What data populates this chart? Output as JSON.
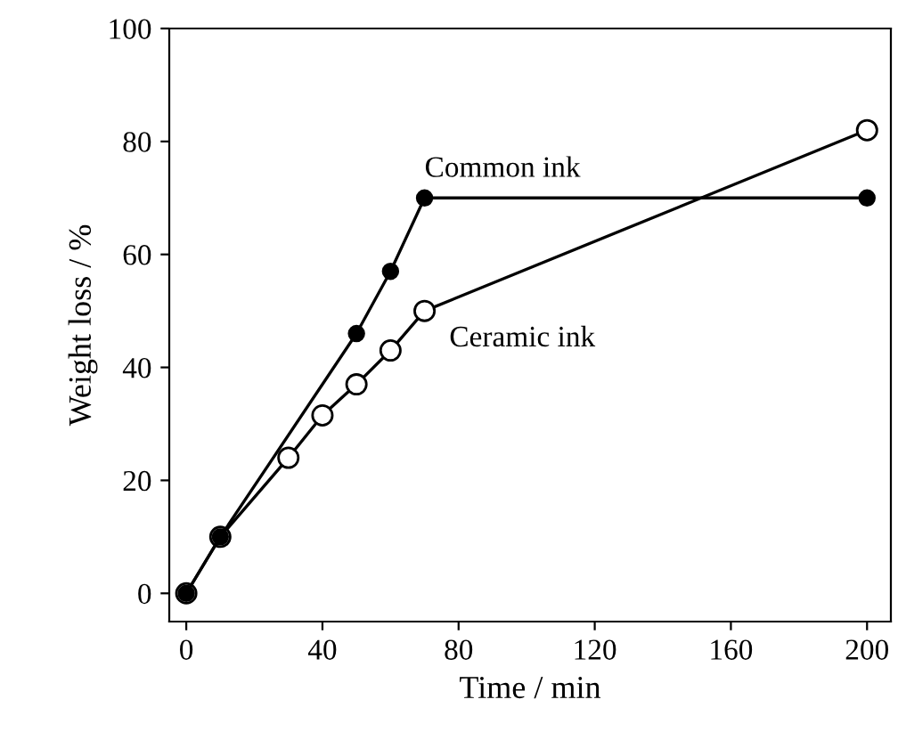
{
  "chart_data": {
    "type": "line",
    "xlabel": "Time / min",
    "ylabel": "Weight loss / %",
    "xlim": [
      -5,
      207
    ],
    "ylim": [
      -5,
      100
    ],
    "xticks": [
      0,
      40,
      80,
      120,
      160,
      200
    ],
    "yticks": [
      0,
      20,
      40,
      60,
      80,
      100
    ],
    "grid": false,
    "legend": false,
    "marker": "circle",
    "line_style": "solid",
    "series": [
      {
        "name": "Common ink",
        "color": "#000000",
        "x": [
          0,
          10,
          50,
          60,
          70,
          200
        ],
        "values": [
          0,
          10,
          46,
          57,
          70,
          70
        ]
      },
      {
        "name": "Ceramic ink",
        "color": "#000000",
        "x": [
          0,
          10,
          30,
          40,
          50,
          60,
          70,
          200
        ],
        "values": [
          0,
          10,
          24,
          31.5,
          37,
          43,
          50,
          82
        ]
      }
    ]
  }
}
